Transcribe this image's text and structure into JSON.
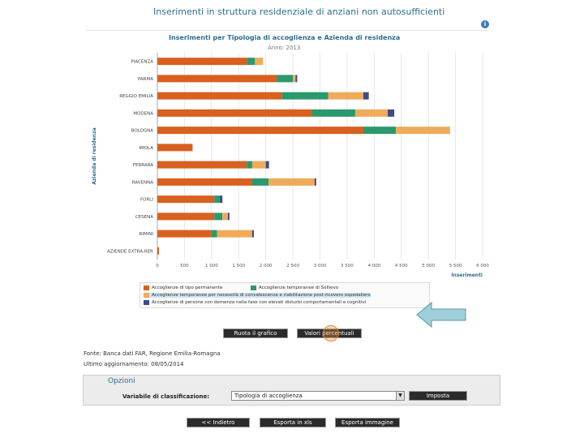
{
  "page_title": "Inserimenti in struttura residenziale di anziani non autosufficienti",
  "info_icon": "i",
  "chart_data": {
    "type": "bar",
    "orientation": "horizontal",
    "stacked": true,
    "title": "Inserimenti per Tipologia di accoglienza e Azienda di residenza",
    "subtitle": "Anno: 2013",
    "xlabel": "Inserimenti",
    "ylabel": "Azienda di residenza",
    "xlim": [
      0,
      6000
    ],
    "xticks": [
      "0",
      "500",
      "1 000",
      "1 500",
      "2 000",
      "2 500",
      "3 000",
      "3 500",
      "4 000",
      "4 500",
      "5 000",
      "5 500",
      "6 000"
    ],
    "grid": true,
    "legend_position": "bottom",
    "categories": [
      "PIACENZA",
      "PARMA",
      "REGGIO EMILIA",
      "MODENA",
      "BOLOGNA",
      "IMOLA",
      "FERRARA",
      "RAVENNA",
      "FORLI",
      "CESENA",
      "RIMINI",
      "AZIENDE EXTRA-RER"
    ],
    "series": [
      {
        "name": "Accoglienze di tipo permanente",
        "color": "#d9601f",
        "values": [
          1650,
          2200,
          2300,
          2850,
          3800,
          650,
          1650,
          1750,
          1050,
          1050,
          1000,
          30
        ]
      },
      {
        "name": "Accoglienze temporanee di Sollievo",
        "color": "#2a9a6e",
        "values": [
          150,
          300,
          850,
          800,
          600,
          0,
          100,
          300,
          100,
          150,
          100,
          0
        ]
      },
      {
        "name": "Accoglienze temporanee per necessità di convalescenza e riabilitazione post-ricovero ospedaliero",
        "color": "#f0ab5a",
        "values": [
          150,
          50,
          650,
          600,
          1000,
          0,
          250,
          850,
          0,
          100,
          650,
          0
        ]
      },
      {
        "name": "Accoglienze di persone con demenza nella fase con elevati disturbi comportamentali e cognitivi",
        "color": "#3c4b8a",
        "values": [
          0,
          30,
          100,
          120,
          0,
          0,
          60,
          30,
          50,
          30,
          30,
          0
        ]
      }
    ]
  },
  "buttons": {
    "reset_chart": "Ruota il grafico",
    "percent_values": "Valori percentuali",
    "back": "<< Indietro",
    "export_excel": "Esporta in xls",
    "export_image": "Esporta immagine",
    "imposta": "Imposta"
  },
  "source": "Fonte: Banca dati FAR, Regione Emilia-Romagna",
  "updated": "Ultimo aggiornamento: 08/05/2014",
  "options": {
    "title": "Opzioni",
    "classification_label": "Variabile di classificazione:",
    "classification_value": "Tipologia di accoglienza"
  },
  "colors": {
    "accent": "#2e6e8e",
    "arrow": "#9fcfd8"
  }
}
